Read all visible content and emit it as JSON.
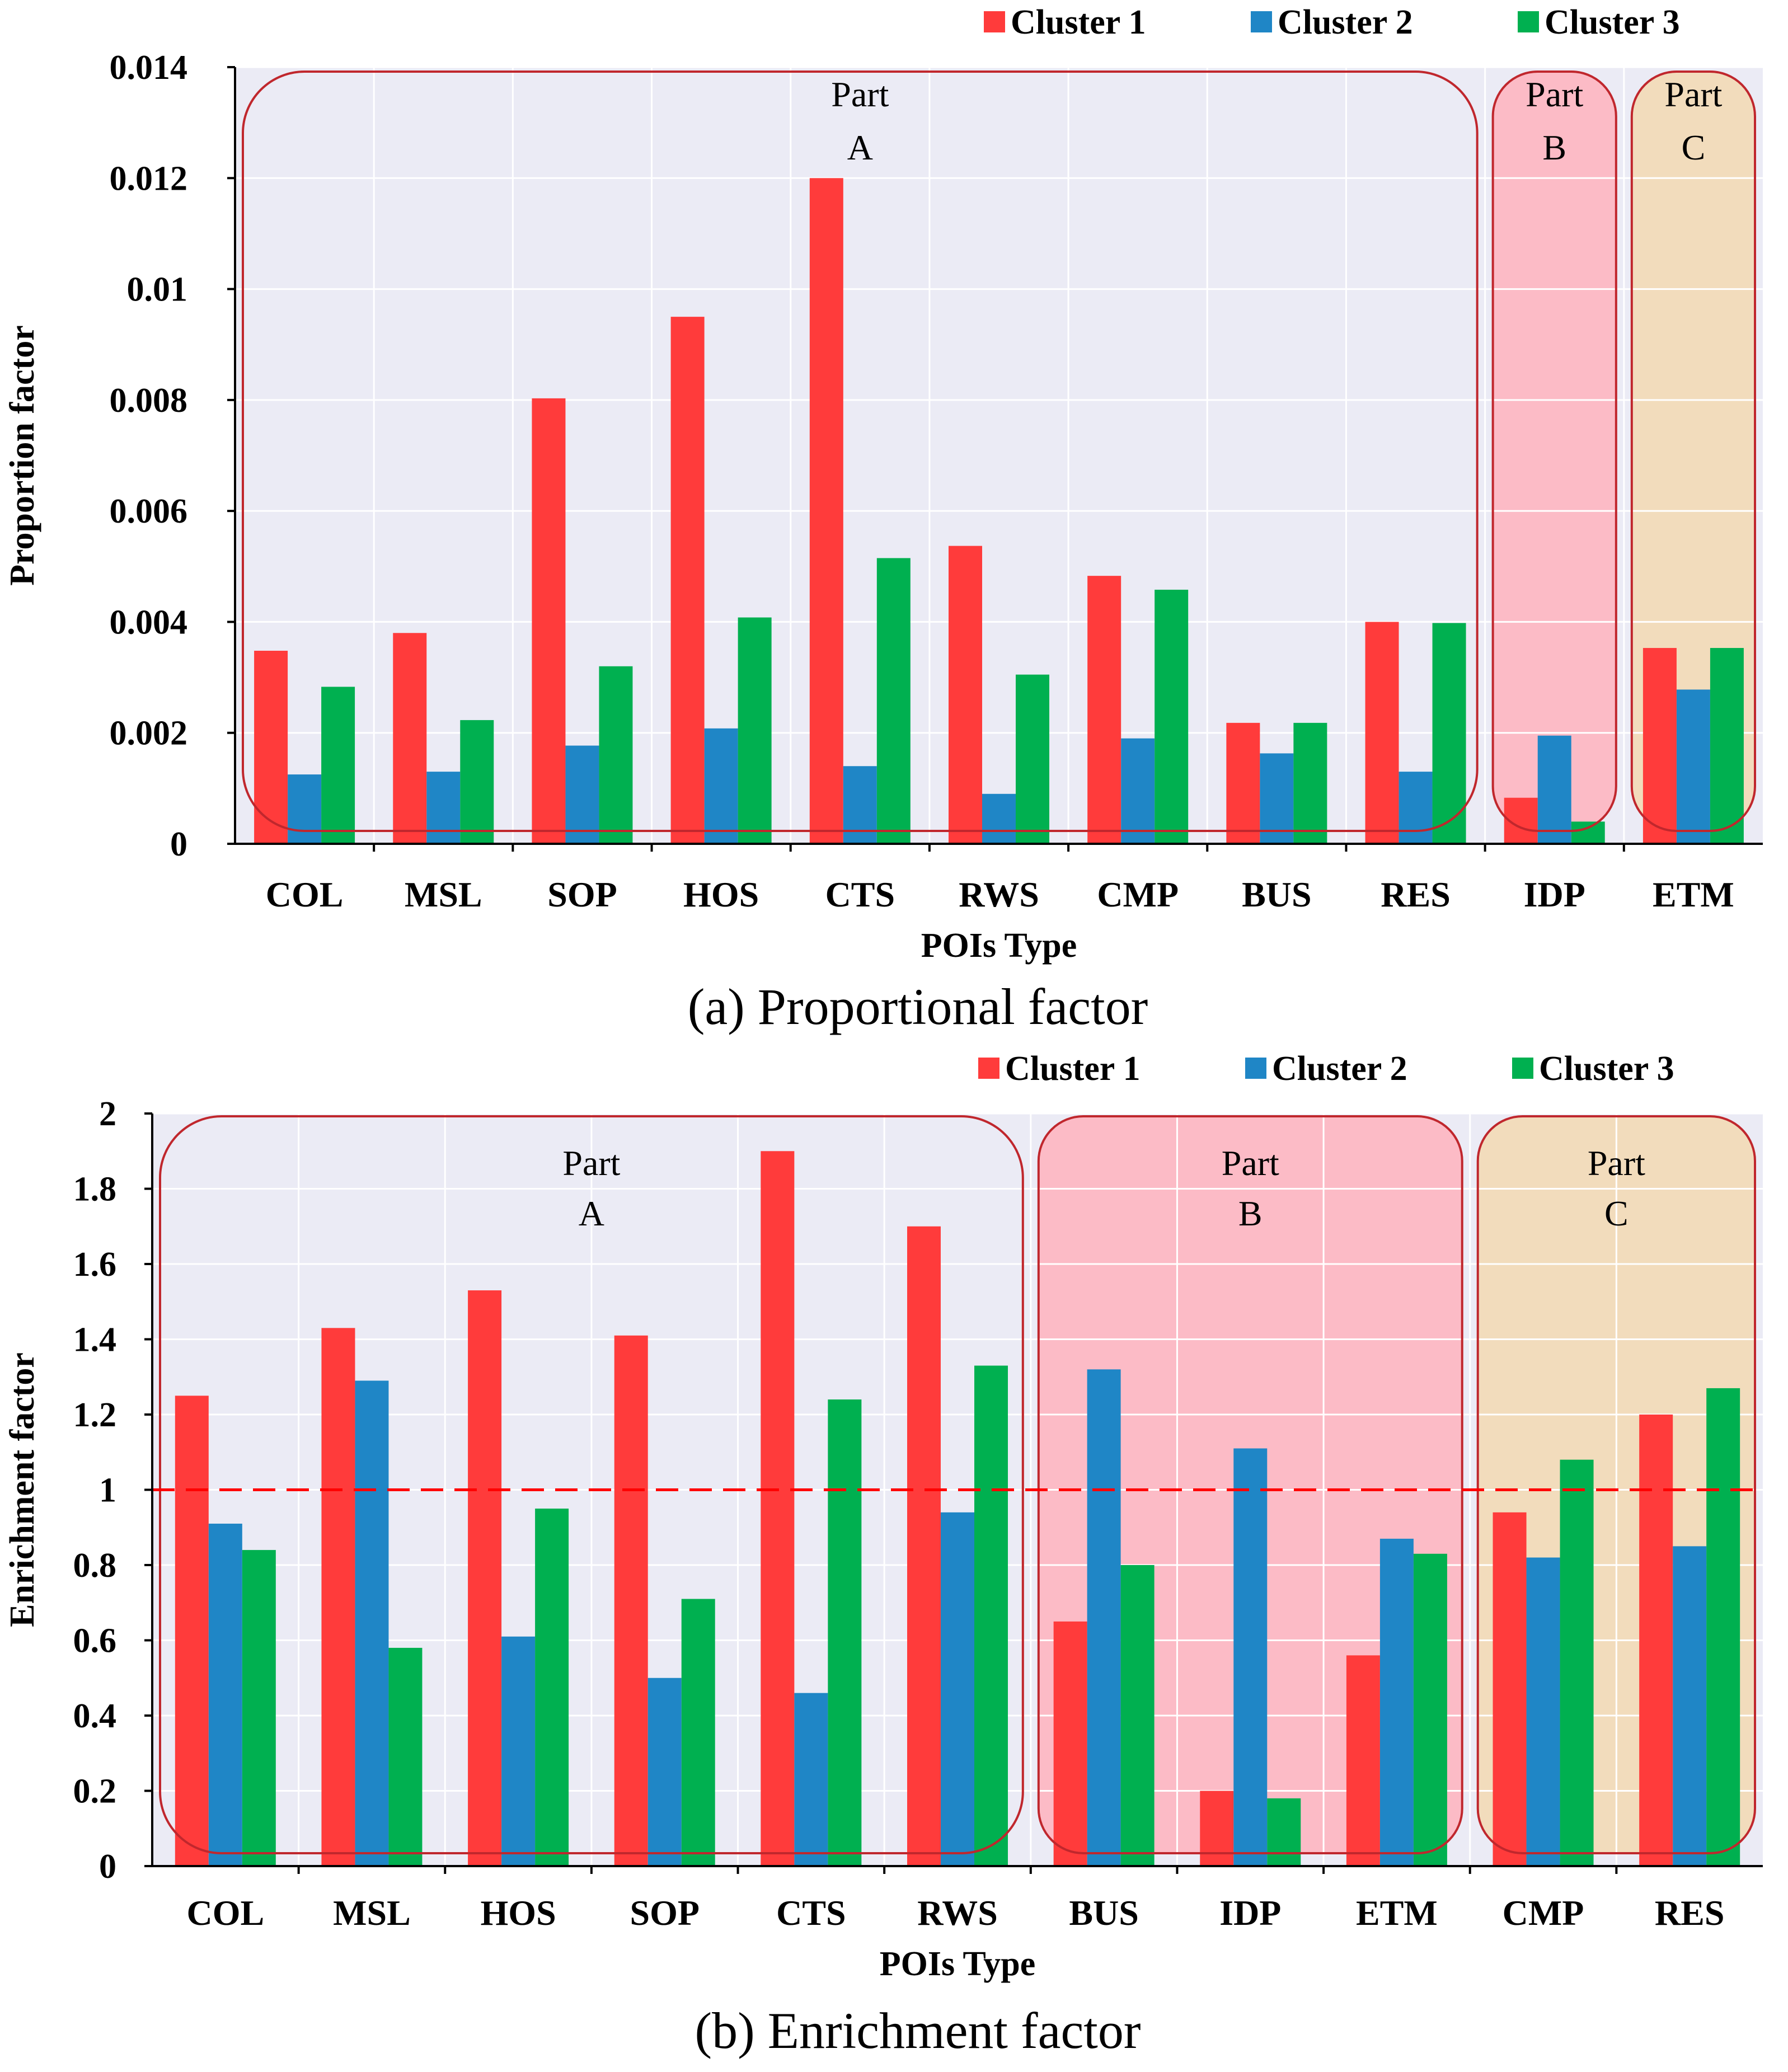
{
  "colors": {
    "cluster1": "#ff3b3b",
    "cluster2": "#1f86c6",
    "cluster3": "#00b050",
    "plot_bg": "#ebebf5",
    "grid": "#ffffff",
    "box_stroke": "#c0272d",
    "part_b_fill": "#ffb3bd",
    "part_c_fill": "#f3d9b1",
    "ref_line": "#ff0000"
  },
  "chart_data": [
    {
      "type": "bar",
      "title": "(a) Proportional factor",
      "xlabel": "POIs Type",
      "ylabel": "Proportion factor",
      "ylim": [
        0,
        0.014
      ],
      "yticks": [
        0,
        0.002,
        0.004,
        0.006,
        0.008,
        0.01,
        0.012,
        0.014
      ],
      "ytick_labels": [
        "0",
        "0.002",
        "0.004",
        "0.006",
        "0.008",
        "0.01",
        "0.012",
        "0.014"
      ],
      "grid": true,
      "legend": "top-right",
      "categories": [
        "COL",
        "MSL",
        "SOP",
        "HOS",
        "CTS",
        "RWS",
        "CMP",
        "BUS",
        "RES",
        "IDP",
        "ETM"
      ],
      "series": [
        {
          "name": "Cluster 1",
          "values": [
            0.00348,
            0.0038,
            0.00803,
            0.0095,
            0.012,
            0.00537,
            0.00483,
            0.00218,
            0.004,
            0.00083,
            0.00353
          ]
        },
        {
          "name": "Cluster 2",
          "values": [
            0.00125,
            0.0013,
            0.00177,
            0.00208,
            0.0014,
            0.0009,
            0.0019,
            0.00163,
            0.0013,
            0.00195,
            0.00278
          ]
        },
        {
          "name": "Cluster 3",
          "values": [
            0.00283,
            0.00223,
            0.0032,
            0.00408,
            0.00515,
            0.00305,
            0.00458,
            0.00218,
            0.00398,
            0.0004,
            0.00353
          ]
        }
      ],
      "groups": [
        {
          "label_line1": "Part",
          "label_line2": "A",
          "from": "COL",
          "to": "RES"
        },
        {
          "label_line1": "Part",
          "label_line2": "B",
          "from": "IDP",
          "to": "IDP"
        },
        {
          "label_line1": "Part",
          "label_line2": "C",
          "from": "ETM",
          "to": "ETM"
        }
      ]
    },
    {
      "type": "bar",
      "title": "(b) Enrichment factor",
      "xlabel": "POIs Type",
      "ylabel": "Enrichment factor",
      "ylim": [
        0,
        2
      ],
      "yticks": [
        0,
        0.2,
        0.4,
        0.6,
        0.8,
        1,
        1.2,
        1.4,
        1.6,
        1.8,
        2
      ],
      "ytick_labels": [
        "0",
        "0.2",
        "0.4",
        "0.6",
        "0.8",
        "1",
        "1.2",
        "1.4",
        "1.6",
        "1.8",
        "2"
      ],
      "grid": true,
      "legend": "top-right",
      "reference_line": 1,
      "categories": [
        "COL",
        "MSL",
        "HOS",
        "SOP",
        "CTS",
        "RWS",
        "BUS",
        "IDP",
        "ETM",
        "CMP",
        "RES"
      ],
      "series": [
        {
          "name": "Cluster 1",
          "values": [
            1.25,
            1.43,
            1.53,
            1.41,
            1.9,
            1.7,
            0.65,
            0.2,
            0.56,
            0.94,
            1.2
          ]
        },
        {
          "name": "Cluster 2",
          "values": [
            0.91,
            1.29,
            0.61,
            0.5,
            0.46,
            0.94,
            1.32,
            1.11,
            0.87,
            0.82,
            0.85
          ]
        },
        {
          "name": "Cluster 3",
          "values": [
            0.84,
            0.58,
            0.95,
            0.71,
            1.24,
            1.33,
            0.8,
            0.18,
            0.83,
            1.08,
            1.27
          ]
        }
      ],
      "groups": [
        {
          "label_line1": "Part",
          "label_line2": "A",
          "from": "COL",
          "to": "RWS"
        },
        {
          "label_line1": "Part",
          "label_line2": "B",
          "from": "BUS",
          "to": "ETM"
        },
        {
          "label_line1": "Part",
          "label_line2": "C",
          "from": "CMP",
          "to": "RES"
        }
      ]
    }
  ]
}
